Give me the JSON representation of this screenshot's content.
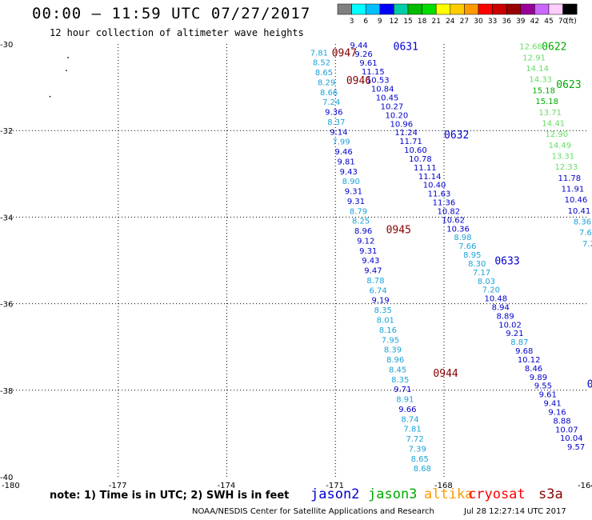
{
  "header": {
    "title": "00:00 — 11:59 UTC 07/27/2017",
    "subtitle": "12 hour collection of altimeter wave heights"
  },
  "footer": {
    "note": "note: 1) Time is in UTC; 2) SWH is in feet",
    "credit": "NOAA/NESDIS Center for Satellite Applications and Research",
    "timestamp": "Jul 28 12:27:14 UTC 2017"
  },
  "satellites": [
    {
      "name": "jason2",
      "color": "#0000cc"
    },
    {
      "name": "jason3",
      "color": "#00aa00"
    },
    {
      "name": "altika",
      "color": "#ff9900"
    },
    {
      "name": "cryosat",
      "color": "#ff0000"
    },
    {
      "name": "s3a",
      "color": "#880000"
    }
  ],
  "chart_data": {
    "type": "scatter",
    "title": "00:00 — 11:59 UTC 07/27/2017",
    "xlim": [
      -180,
      -164
    ],
    "ylim": [
      -40,
      -30
    ],
    "x_ticks": [
      -180,
      -177,
      -174,
      -171,
      -168,
      -164
    ],
    "x_tick_labels": [
      "-180",
      "-177",
      "-174",
      "-171",
      "-168",
      "-164"
    ],
    "y_ticks": [
      -30,
      -32,
      -34,
      -36,
      -38,
      -40
    ],
    "y_tick_labels": [
      "-30",
      "-32",
      "-34",
      "-36",
      "-38",
      "-40"
    ],
    "color_scale": {
      "unit": "(ft)",
      "ticks": [
        "3",
        "6",
        "9",
        "12",
        "15",
        "18",
        "21",
        "24",
        "27",
        "30",
        "33",
        "36",
        "39",
        "42",
        "45",
        "70"
      ],
      "colors": [
        "#808080",
        "#00ffff",
        "#00bfff",
        "#0000ff",
        "#00ccaa",
        "#00bb00",
        "#00dd00",
        "#ffff00",
        "#ffcc00",
        "#ff9900",
        "#ff0000",
        "#cc0000",
        "#990000",
        "#990099",
        "#cc66ff",
        "#ffccff",
        "#000000"
      ]
    },
    "time_labels": [
      {
        "text": "0947",
        "lon": -171.1,
        "lat": -30.19,
        "color": "#880000"
      },
      {
        "text": "0946",
        "lon": -170.7,
        "lat": -30.83,
        "color": "#880000"
      },
      {
        "text": "0945",
        "lon": -169.6,
        "lat": -34.28,
        "color": "#880000"
      },
      {
        "text": "0944",
        "lon": -168.3,
        "lat": -37.6,
        "color": "#880000"
      },
      {
        "text": "0631",
        "lon": -169.4,
        "lat": -30.05,
        "color": "#0000cc"
      },
      {
        "text": "0632",
        "lon": -168.0,
        "lat": -32.09,
        "color": "#0000cc"
      },
      {
        "text": "0633",
        "lon": -166.6,
        "lat": -35.0,
        "color": "#0000cc"
      },
      {
        "text": "0622",
        "lon": -165.3,
        "lat": -30.05,
        "color": "#00aa00"
      },
      {
        "text": "0623",
        "lon": -164.9,
        "lat": -30.92,
        "color": "#00aa00"
      }
    ],
    "tracks": [
      {
        "satellite": "s3a",
        "lon_start": -171.45,
        "lon_end": -168.6,
        "lat_start": -30.19,
        "lat_end": -39.8,
        "values": [
          "7.81",
          "8.52",
          "8.65",
          "8.29",
          "8.66",
          "7.24",
          "9.36",
          "8.37",
          "9.14",
          "7.99",
          "9.46",
          "9.81",
          "9.43",
          "8.90",
          "9.31",
          "9.31",
          "8.79",
          "8.25",
          "8.96",
          "9.12",
          "9.31",
          "9.43",
          "9.47",
          "8.78",
          "6.74",
          "9.19",
          "8.35",
          "8.01",
          "8.16",
          "7.95",
          "8.39",
          "8.96",
          "8.45",
          "8.35",
          "9.71",
          "8.91",
          "9.66",
          "8.74",
          "7.81",
          "7.72",
          "7.39",
          "8.65",
          "8.68"
        ],
        "colors": [
          "#1ba3d9",
          "#1ba3d9",
          "#1ba3d9",
          "#1ba3d9",
          "#1ba3d9",
          "#1ba3d9",
          "#0000cc",
          "#1ba3d9",
          "#0000cc",
          "#1ba3d9",
          "#0000cc",
          "#0000cc",
          "#0000cc",
          "#1ba3d9",
          "#0000cc",
          "#0000cc",
          "#1ba3d9",
          "#1ba3d9",
          "#0000cc",
          "#0000cc",
          "#0000cc",
          "#0000cc",
          "#0000cc",
          "#1ba3d9",
          "#1ba3d9",
          "#0000cc",
          "#1ba3d9",
          "#1ba3d9",
          "#1ba3d9",
          "#1ba3d9",
          "#1ba3d9",
          "#1ba3d9",
          "#1ba3d9",
          "#1ba3d9",
          "#0000cc",
          "#1ba3d9",
          "#0000cc",
          "#1ba3d9",
          "#1ba3d9",
          "#1ba3d9",
          "#1ba3d9",
          "#1ba3d9",
          "#1ba3d9"
        ]
      },
      {
        "satellite": "jason2",
        "lon_start": -170.35,
        "lon_end": -164.35,
        "lat_start": -30.02,
        "lat_end": -39.3,
        "values": [
          "9.44",
          "9.26",
          "9.61",
          "11.15",
          "10.53",
          "10.84",
          "10.45",
          "10.27",
          "10.20",
          "10.96",
          "11.24",
          "11.71",
          "10.60",
          "10.78",
          "11.11",
          "11.14",
          "10.40",
          "11.63",
          "11.36",
          "10.82",
          "10.62",
          "10.36",
          "8.98",
          "7.66",
          "8.95",
          "8.30",
          "7.17",
          "8.03",
          "7.20",
          "10.48",
          "8.94",
          "8.89",
          "10.02",
          "9.21",
          "8.87",
          "9.68",
          "10.12",
          "8.46",
          "9.89",
          "9.55",
          "9.61",
          "9.41",
          "9.16",
          "8.88",
          "10.07",
          "10.04",
          "9.57"
        ],
        "colors": [
          "#0000cc",
          "#0000cc",
          "#0000cc",
          "#0000cc",
          "#0000cc",
          "#0000cc",
          "#0000cc",
          "#0000cc",
          "#0000cc",
          "#0000cc",
          "#0000cc",
          "#0000cc",
          "#0000cc",
          "#0000cc",
          "#0000cc",
          "#0000cc",
          "#0000cc",
          "#0000cc",
          "#0000cc",
          "#0000cc",
          "#0000cc",
          "#0000cc",
          "#1ba3d9",
          "#1ba3d9",
          "#1ba3d9",
          "#1ba3d9",
          "#1ba3d9",
          "#1ba3d9",
          "#1ba3d9",
          "#0000cc",
          "#0000cc",
          "#0000cc",
          "#0000cc",
          "#0000cc",
          "#1ba3d9",
          "#0000cc",
          "#0000cc",
          "#0000cc",
          "#0000cc",
          "#0000cc",
          "#0000cc",
          "#0000cc",
          "#0000cc",
          "#0000cc",
          "#0000cc",
          "#0000cc",
          "#0000cc"
        ]
      },
      {
        "satellite": "jason3",
        "lon_start": -165.6,
        "lon_end": -164.0,
        "lat_start": -30.05,
        "lat_end": -34.6,
        "values": [
          "12.68",
          "12.91",
          "14.14",
          "14.33",
          "15.18",
          "15.18",
          "13.71",
          "14.41",
          "12.90",
          "14.49",
          "13.31",
          "12.33",
          "11.78",
          "11.91",
          "10.46",
          "10.41",
          "8.36",
          "7.6",
          "7.2"
        ],
        "colors": [
          "#66dd66",
          "#66dd66",
          "#66dd66",
          "#66dd66",
          "#00aa00",
          "#00aa00",
          "#66dd66",
          "#66dd66",
          "#66dd66",
          "#66dd66",
          "#66dd66",
          "#66dd66",
          "#0000cc",
          "#0000cc",
          "#0000cc",
          "#0000cc",
          "#1ba3d9",
          "#1ba3d9",
          "#1ba3d9"
        ]
      }
    ],
    "partial_labels": [
      {
        "text": "0",
        "lon": -164.05,
        "lat": -37.85,
        "color": "#0000cc"
      }
    ],
    "tiny_marks": [
      {
        "lon": -178.4,
        "lat": -30.3
      },
      {
        "lon": -178.45,
        "lat": -30.6
      },
      {
        "lon": -178.9,
        "lat": -31.2
      }
    ]
  }
}
